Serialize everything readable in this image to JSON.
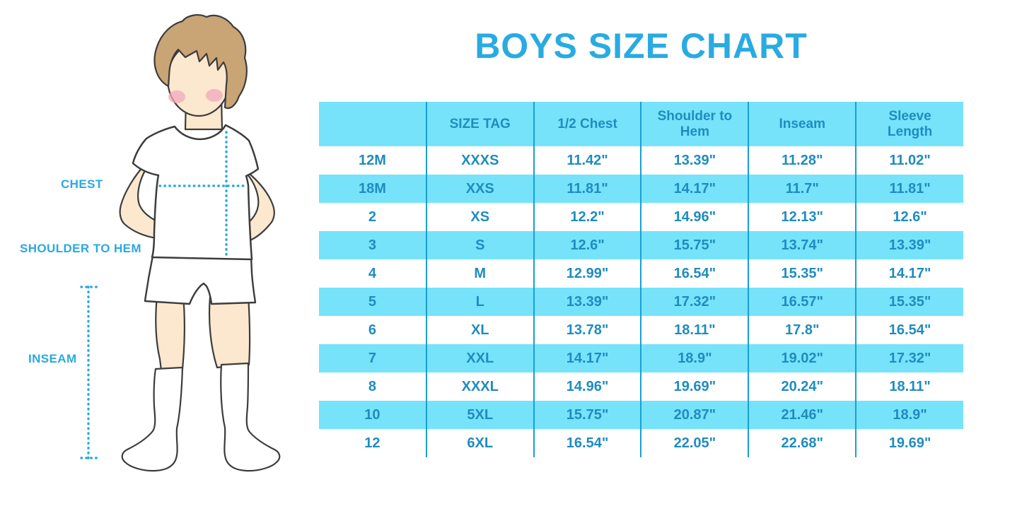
{
  "title": "BOYS SIZE CHART",
  "figure": {
    "description": "cartoon boy in white t-shirt, shorts and knee socks with dotted measurement guides",
    "labels": {
      "chest": "CHEST",
      "shoulder_to_hem": "SHOULDER TO HEM",
      "inseam": "INSEAM"
    }
  },
  "colors": {
    "accent_blue": "#29ABE2",
    "table_text_blue": "#1F8CBF",
    "row_fill_cyan": "#76E3FB",
    "divider_blue": "#189FD3",
    "hair_brown": "#C9A475",
    "skin_peach": "#FCE8CE",
    "cheek_pink": "#F2A9BC"
  },
  "chart_data": {
    "type": "table",
    "title": "BOYS SIZE CHART",
    "columns": [
      "",
      "SIZE TAG",
      "1/2 Chest",
      "Shoulder to Hem",
      "Inseam",
      "Sleeve Length"
    ],
    "rows": [
      [
        "12M",
        "XXXS",
        "11.42\"",
        "13.39\"",
        "11.28\"",
        "11.02\""
      ],
      [
        "18M",
        "XXS",
        "11.81\"",
        "14.17\"",
        "11.7\"",
        "11.81\""
      ],
      [
        "2",
        "XS",
        "12.2\"",
        "14.96\"",
        "12.13\"",
        "12.6\""
      ],
      [
        "3",
        "S",
        "12.6\"",
        "15.75\"",
        "13.74\"",
        "13.39\""
      ],
      [
        "4",
        "M",
        "12.99\"",
        "16.54\"",
        "15.35\"",
        "14.17\""
      ],
      [
        "5",
        "L",
        "13.39\"",
        "17.32\"",
        "16.57\"",
        "15.35\""
      ],
      [
        "6",
        "XL",
        "13.78\"",
        "18.11\"",
        "17.8\"",
        "16.54\""
      ],
      [
        "7",
        "XXL",
        "14.17\"",
        "18.9\"",
        "19.02\"",
        "17.32\""
      ],
      [
        "8",
        "XXXL",
        "14.96\"",
        "19.69\"",
        "20.24\"",
        "18.11\""
      ],
      [
        "10",
        "5XL",
        "15.75\"",
        "20.87\"",
        "21.46\"",
        "18.9\""
      ],
      [
        "12",
        "6XL",
        "16.54\"",
        "22.05\"",
        "22.68\"",
        "19.69\""
      ]
    ],
    "layout": {
      "header_fill": "#76E3FB",
      "row_alternation": [
        "#FFFFFF",
        "#76E3FB"
      ],
      "column_dividers": true,
      "horizontal_gridlines": false
    }
  }
}
